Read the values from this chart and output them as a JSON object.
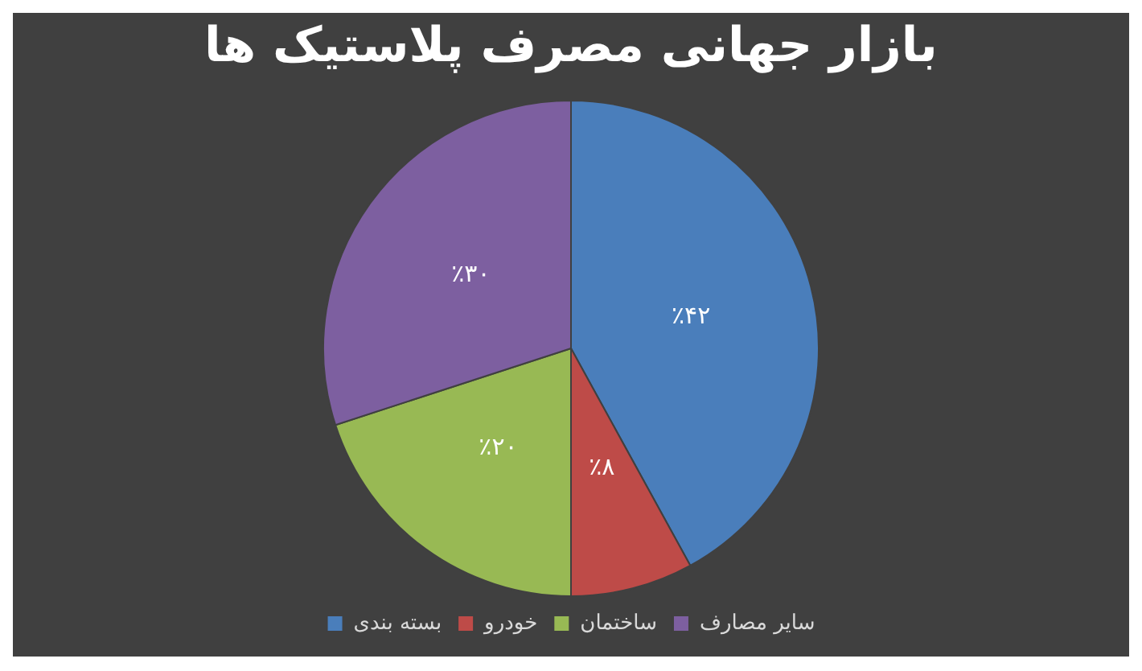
{
  "chart_data": {
    "type": "pie",
    "title": "بازار جهانی مصرف پلاستیک ها",
    "categories": [
      "بسته بندی",
      "خودرو",
      "ساختمان",
      "سایر مصارف"
    ],
    "values": [
      42,
      8,
      20,
      30
    ],
    "colors": [
      "#4a7ebb",
      "#be4b48",
      "#98b954",
      "#7d5fa0"
    ],
    "value_labels": [
      "٪۴۲",
      "٪۸",
      "٪۲۰",
      "٪۳۰"
    ],
    "legend": "bottom"
  }
}
